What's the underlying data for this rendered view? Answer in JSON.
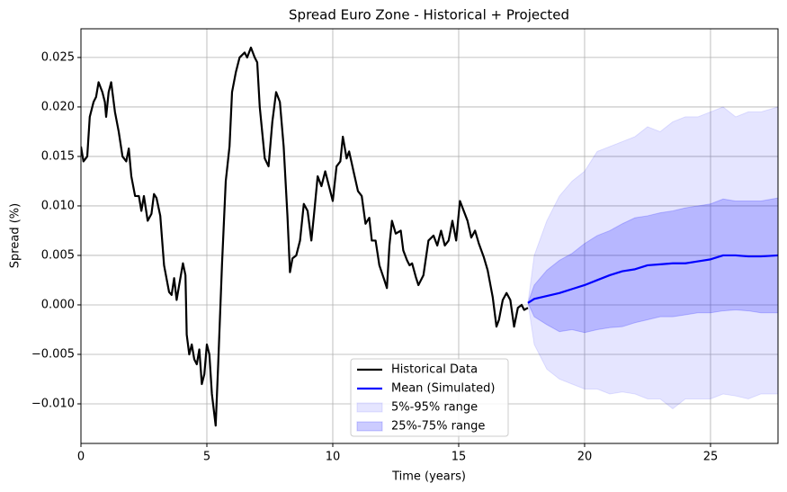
{
  "chart_data": {
    "type": "line",
    "title": "Spread Euro Zone - Historical + Projected",
    "x_label": "Time (years)",
    "y_label": "Spread (%)",
    "xlim": [
      0,
      27.68
    ],
    "ylim": [
      -0.014,
      0.0279
    ],
    "xticks": [
      0,
      5,
      10,
      15,
      20,
      25
    ],
    "yticks": [
      {
        "value": -0.01,
        "label": "−0.010"
      },
      {
        "value": -0.005,
        "label": "−0.005"
      },
      {
        "value": 0,
        "label": "0.000"
      },
      {
        "value": 0.005,
        "label": "0.005"
      },
      {
        "value": 0.01,
        "label": "0.010"
      },
      {
        "value": 0.015,
        "label": "0.015"
      },
      {
        "value": 0.02,
        "label": "0.020"
      },
      {
        "value": 0.025,
        "label": "0.025"
      }
    ],
    "grid": true,
    "legend": "lower center",
    "series": [
      {
        "name": "Historical Data",
        "color": "#000000",
        "x": [
          0,
          0.1,
          0.25,
          0.35,
          0.5,
          0.6,
          0.7,
          0.85,
          0.95,
          1.0,
          1.1,
          1.2,
          1.35,
          1.5,
          1.65,
          1.8,
          1.9,
          2.0,
          2.15,
          2.3,
          2.4,
          2.5,
          2.65,
          2.8,
          2.9,
          3.0,
          3.15,
          3.3,
          3.5,
          3.6,
          3.7,
          3.8,
          3.9,
          4.05,
          4.15,
          4.2,
          4.3,
          4.4,
          4.5,
          4.6,
          4.7,
          4.8,
          4.9,
          5.0,
          5.1,
          5.2,
          5.35,
          5.45,
          5.6,
          5.75,
          5.9,
          6.0,
          6.15,
          6.3,
          6.5,
          6.6,
          6.75,
          6.9,
          7.0,
          7.1,
          7.3,
          7.45,
          7.6,
          7.75,
          7.9,
          8.05,
          8.2,
          8.3,
          8.4,
          8.55,
          8.7,
          8.85,
          9.0,
          9.15,
          9.25,
          9.4,
          9.55,
          9.7,
          9.8,
          10.0,
          10.15,
          10.3,
          10.4,
          10.55,
          10.65,
          10.85,
          11.0,
          11.15,
          11.3,
          11.45,
          11.55,
          11.7,
          11.85,
          12.05,
          12.15,
          12.25,
          12.35,
          12.5,
          12.7,
          12.8,
          12.95,
          13.05,
          13.15,
          13.3,
          13.4,
          13.6,
          13.8,
          14.0,
          14.15,
          14.3,
          14.45,
          14.6,
          14.75,
          14.9,
          15.05,
          15.2,
          15.35,
          15.5,
          15.65,
          15.8,
          16.0,
          16.15,
          16.35,
          16.5,
          16.6,
          16.75,
          16.9,
          17.05,
          17.2,
          17.35,
          17.5,
          17.6,
          17.75
        ],
        "values": [
          0.016,
          0.0145,
          0.015,
          0.019,
          0.0205,
          0.021,
          0.0225,
          0.0215,
          0.0205,
          0.019,
          0.0215,
          0.0225,
          0.0195,
          0.0175,
          0.015,
          0.0145,
          0.0158,
          0.013,
          0.011,
          0.011,
          0.0095,
          0.011,
          0.0085,
          0.0092,
          0.0112,
          0.0108,
          0.009,
          0.004,
          0.0013,
          0.001,
          0.0027,
          0.0005,
          0.002,
          0.0042,
          0.003,
          -0.003,
          -0.005,
          -0.004,
          -0.0055,
          -0.006,
          -0.0045,
          -0.008,
          -0.007,
          -0.004,
          -0.005,
          -0.009,
          -0.0122,
          -0.006,
          0.004,
          0.0125,
          0.016,
          0.0215,
          0.0235,
          0.025,
          0.0255,
          0.025,
          0.026,
          0.025,
          0.0245,
          0.02,
          0.0148,
          0.014,
          0.0185,
          0.0215,
          0.0205,
          0.016,
          0.009,
          0.0033,
          0.0047,
          0.005,
          0.0065,
          0.0102,
          0.0095,
          0.0065,
          0.009,
          0.013,
          0.012,
          0.0135,
          0.0125,
          0.0105,
          0.014,
          0.0145,
          0.017,
          0.0148,
          0.0155,
          0.0132,
          0.0115,
          0.011,
          0.0082,
          0.0088,
          0.0065,
          0.0065,
          0.004,
          0.0025,
          0.0017,
          0.006,
          0.0085,
          0.0072,
          0.0075,
          0.0055,
          0.0045,
          0.004,
          0.0042,
          0.0028,
          0.002,
          0.003,
          0.0065,
          0.007,
          0.006,
          0.0075,
          0.006,
          0.0065,
          0.0085,
          0.0065,
          0.0105,
          0.0095,
          0.0085,
          0.0068,
          0.0075,
          0.0062,
          0.0048,
          0.0035,
          0.0008,
          -0.0022,
          -0.0015,
          0.0005,
          0.0012,
          0.0005,
          -0.0022,
          -0.0003,
          0,
          -0.0005,
          -0.0003
        ]
      },
      {
        "name": "Mean (Simulated)",
        "color": "#0000ff",
        "x": [
          17.75,
          18,
          18.5,
          19,
          19.5,
          20,
          20.5,
          21,
          21.5,
          22,
          22.5,
          23,
          23.5,
          24,
          24.5,
          25,
          25.5,
          26,
          26.5,
          27,
          27.68
        ],
        "values": [
          0.0002,
          0.0006,
          0.0009,
          0.0012,
          0.0016,
          0.002,
          0.0025,
          0.003,
          0.0034,
          0.0036,
          0.004,
          0.0041,
          0.0042,
          0.0042,
          0.0044,
          0.0046,
          0.005,
          0.005,
          0.0049,
          0.0049,
          0.005
        ]
      }
    ],
    "bands": [
      {
        "name": "5%-95% range",
        "color": "#0000ff",
        "alpha": 0.1,
        "x": [
          17.75,
          18,
          18.5,
          19,
          19.5,
          20,
          20.5,
          21,
          21.5,
          22,
          22.5,
          23,
          23.5,
          24,
          24.5,
          25,
          25.5,
          26,
          26.5,
          27,
          27.68
        ],
        "lower": [
          0.0002,
          -0.004,
          -0.0065,
          -0.0075,
          -0.008,
          -0.0085,
          -0.0085,
          -0.009,
          -0.0088,
          -0.009,
          -0.0095,
          -0.0095,
          -0.0105,
          -0.0095,
          -0.0095,
          -0.0095,
          -0.009,
          -0.0092,
          -0.0095,
          -0.009,
          -0.009
        ],
        "upper": [
          0.0002,
          0.005,
          0.0085,
          0.011,
          0.0125,
          0.0135,
          0.0155,
          0.016,
          0.0165,
          0.017,
          0.018,
          0.0175,
          0.0185,
          0.019,
          0.019,
          0.0195,
          0.02,
          0.019,
          0.0195,
          0.0195,
          0.02
        ]
      },
      {
        "name": "25%-75% range",
        "color": "#0000ff",
        "alpha": 0.2,
        "x": [
          17.75,
          18,
          18.5,
          19,
          19.5,
          20,
          20.5,
          21,
          21.5,
          22,
          22.5,
          23,
          23.5,
          24,
          24.5,
          25,
          25.5,
          26,
          26.5,
          27,
          27.68
        ],
        "lower": [
          0.0002,
          -0.0012,
          -0.002,
          -0.0027,
          -0.0025,
          -0.0028,
          -0.0025,
          -0.0023,
          -0.0022,
          -0.0018,
          -0.0015,
          -0.0012,
          -0.0012,
          -0.001,
          -0.0008,
          -0.0008,
          -0.0006,
          -0.0005,
          -0.0006,
          -0.0008,
          -0.0008
        ],
        "upper": [
          0.0002,
          0.002,
          0.0035,
          0.0045,
          0.0052,
          0.0062,
          0.007,
          0.0075,
          0.0082,
          0.0088,
          0.009,
          0.0093,
          0.0095,
          0.0098,
          0.01,
          0.0102,
          0.0107,
          0.0105,
          0.0105,
          0.0105,
          0.0108
        ]
      }
    ]
  }
}
